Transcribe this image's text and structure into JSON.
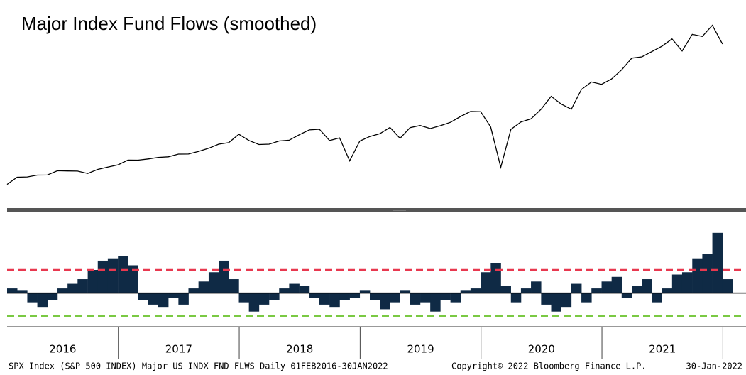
{
  "chart_data": [
    {
      "type": "line",
      "title": "Major Index Fund Flows (smoothed)",
      "series": [
        {
          "name": "SPX Index (S&P 500 INDEX)",
          "color": "#000000",
          "x": [
            2016.08,
            2016.163,
            2016.247,
            2016.33,
            2016.413,
            2016.497,
            2016.58,
            2016.663,
            2016.747,
            2016.83,
            2016.913,
            2016.997,
            2017.08,
            2017.163,
            2017.247,
            2017.33,
            2017.413,
            2017.497,
            2017.58,
            2017.663,
            2017.747,
            2017.83,
            2017.913,
            2017.997,
            2018.08,
            2018.163,
            2018.247,
            2018.33,
            2018.413,
            2018.497,
            2018.58,
            2018.663,
            2018.747,
            2018.83,
            2018.913,
            2018.997,
            2019.08,
            2019.163,
            2019.247,
            2019.33,
            2019.413,
            2019.497,
            2019.58,
            2019.663,
            2019.747,
            2019.83,
            2019.913,
            2019.997,
            2020.08,
            2020.163,
            2020.247,
            2020.33,
            2020.413,
            2020.497,
            2020.58,
            2020.663,
            2020.747,
            2020.83,
            2020.913,
            2020.997,
            2021.08,
            2021.163,
            2021.247,
            2021.33,
            2021.413,
            2021.497,
            2021.58,
            2021.663,
            2021.747,
            2021.83,
            2021.913,
            2021.997
          ],
          "values": [
            1932,
            2060,
            2065,
            2097,
            2099,
            2174,
            2171,
            2168,
            2126,
            2199,
            2239,
            2279,
            2364,
            2363,
            2384,
            2412,
            2423,
            2470,
            2472,
            2519,
            2575,
            2648,
            2674,
            2824,
            2714,
            2641,
            2648,
            2705,
            2718,
            2816,
            2902,
            2914,
            2712,
            2760,
            2351,
            2704,
            2784,
            2834,
            2946,
            2752,
            2942,
            2980,
            2926,
            2977,
            3038,
            3141,
            3231,
            3226,
            2954,
            2237,
            2912,
            3044,
            3100,
            3271,
            3500,
            3363,
            3270,
            3622,
            3756,
            3714,
            3811,
            3973,
            4181,
            4204,
            4298,
            4395,
            4523,
            4308,
            4605,
            4567,
            4766,
            4432
          ]
        }
      ],
      "xlim": [
        2016.08,
        2022.08
      ],
      "ylim": [
        1800,
        4900
      ]
    },
    {
      "type": "bar",
      "name": "Major US INDX FND FLWS",
      "color": "#0f2a45",
      "x": [
        2016.08,
        2016.163,
        2016.247,
        2016.33,
        2016.413,
        2016.497,
        2016.58,
        2016.663,
        2016.747,
        2016.83,
        2016.913,
        2016.997,
        2017.08,
        2017.163,
        2017.247,
        2017.33,
        2017.413,
        2017.497,
        2017.58,
        2017.663,
        2017.747,
        2017.83,
        2017.913,
        2017.997,
        2018.08,
        2018.163,
        2018.247,
        2018.33,
        2018.413,
        2018.497,
        2018.58,
        2018.663,
        2018.747,
        2018.83,
        2018.913,
        2018.997,
        2019.08,
        2019.163,
        2019.247,
        2019.33,
        2019.413,
        2019.497,
        2019.58,
        2019.663,
        2019.747,
        2019.83,
        2019.913,
        2019.997,
        2020.08,
        2020.163,
        2020.247,
        2020.33,
        2020.413,
        2020.497,
        2020.58,
        2020.663,
        2020.747,
        2020.83,
        2020.913,
        2020.997,
        2021.08,
        2021.163,
        2021.247,
        2021.33,
        2021.413,
        2021.497,
        2021.58,
        2021.663,
        2021.747,
        2021.83,
        2021.913,
        2021.997
      ],
      "values": [
        0.2,
        0.1,
        -0.4,
        -0.6,
        -0.3,
        0.2,
        0.4,
        0.6,
        1.0,
        1.4,
        1.5,
        1.6,
        1.2,
        -0.3,
        -0.5,
        -0.6,
        -0.2,
        -0.5,
        0.2,
        0.5,
        0.9,
        1.4,
        0.6,
        -0.4,
        -0.8,
        -0.5,
        -0.3,
        0.2,
        0.4,
        0.3,
        -0.2,
        -0.5,
        -0.6,
        -0.3,
        -0.2,
        0.1,
        -0.3,
        -0.7,
        -0.4,
        0.1,
        -0.5,
        -0.4,
        -0.8,
        -0.3,
        -0.4,
        0.1,
        0.2,
        0.9,
        1.3,
        0.3,
        -0.4,
        0.2,
        0.5,
        -0.5,
        -0.8,
        -0.6,
        0.4,
        -0.4,
        0.2,
        0.5,
        0.7,
        -0.2,
        0.3,
        0.6,
        -0.4,
        0.2,
        0.8,
        0.9,
        1.5,
        1.7,
        2.6,
        0.6
      ],
      "xlim": [
        2016.08,
        2022.08
      ],
      "ylim": [
        -1.3,
        3.3
      ],
      "reference_lines": [
        {
          "value": 1,
          "color": "#e8384f"
        },
        {
          "value": -1,
          "color": "#7ac943"
        }
      ],
      "xticks": [
        2017,
        2018,
        2019,
        2020,
        2021,
        2022
      ],
      "year_labels": [
        {
          "value": 2016.54,
          "label": "2016"
        },
        {
          "value": 2017.5,
          "label": "2017"
        },
        {
          "value": 2018.5,
          "label": "2018"
        },
        {
          "value": 2019.5,
          "label": "2019"
        },
        {
          "value": 2020.5,
          "label": "2020"
        },
        {
          "value": 2021.5,
          "label": "2021"
        }
      ],
      "footer": {
        "description": "SPX Index (S&P 500 INDEX) Major US INDX FND FLWS  Daily 01FEB2016-30JAN2022",
        "copyright": "Copyright© 2022 Bloomberg Finance L.P.",
        "date": "30-Jan-2022"
      }
    }
  ]
}
